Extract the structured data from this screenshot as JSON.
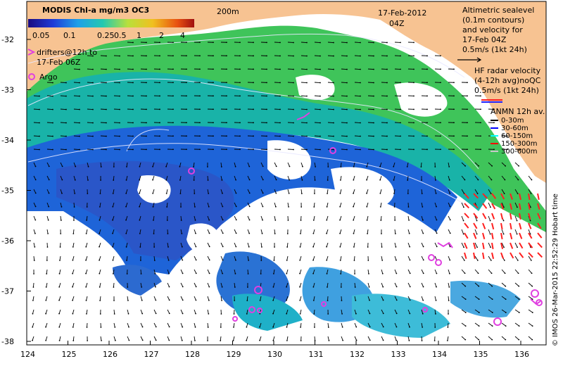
{
  "colorbar": {
    "title": "MODIS Chl-a mg/m3 OC3",
    "ticks": [
      "0.05",
      "0.1",
      "0.25",
      "0.5",
      "1",
      "2",
      "4"
    ]
  },
  "drifters_label": [
    "drifters@12h to",
    "17-Feb 06Z"
  ],
  "argo_label": "Argo",
  "isobath_label": "200m",
  "date": "17-Feb-2012",
  "time": "04Z",
  "altimetry": [
    "Altimetric sealevel",
    "(0.1m contours)",
    "and velocity for",
    "17-Feb 04Z",
    "0.5m/s (1kt 24h)"
  ],
  "hf_radar": [
    "HF radar velocity",
    "(4-12h avg)noQC",
    "0.5m/s (1kt 24h)"
  ],
  "anmn": {
    "title": "ANMN 12h av.",
    "items": [
      {
        "label": "0-30m",
        "color": "#000000"
      },
      {
        "label": "30-60m",
        "color": "#0000ff"
      },
      {
        "label": "60-150m",
        "color": "#00ffff"
      },
      {
        "label": "150-300m",
        "color": "#ff0000"
      },
      {
        "label": "300-600m",
        "color": "#c8c8c8"
      }
    ]
  },
  "credit": "© IMOS 26-Mar-2015 22:52:29 Hobart time",
  "axes": {
    "lon_ticks": [
      "124",
      "125",
      "126",
      "127",
      "128",
      "129",
      "130",
      "131",
      "132",
      "133",
      "134",
      "135",
      "136"
    ],
    "lat_ticks": [
      "-32",
      "-33",
      "-34",
      "-35",
      "-36",
      "-37",
      "-38"
    ]
  },
  "colors": {
    "land": "#f7c392",
    "argo": "#e040e0",
    "hf_arrow": "#ff2020",
    "drifter": "#e040e0"
  }
}
